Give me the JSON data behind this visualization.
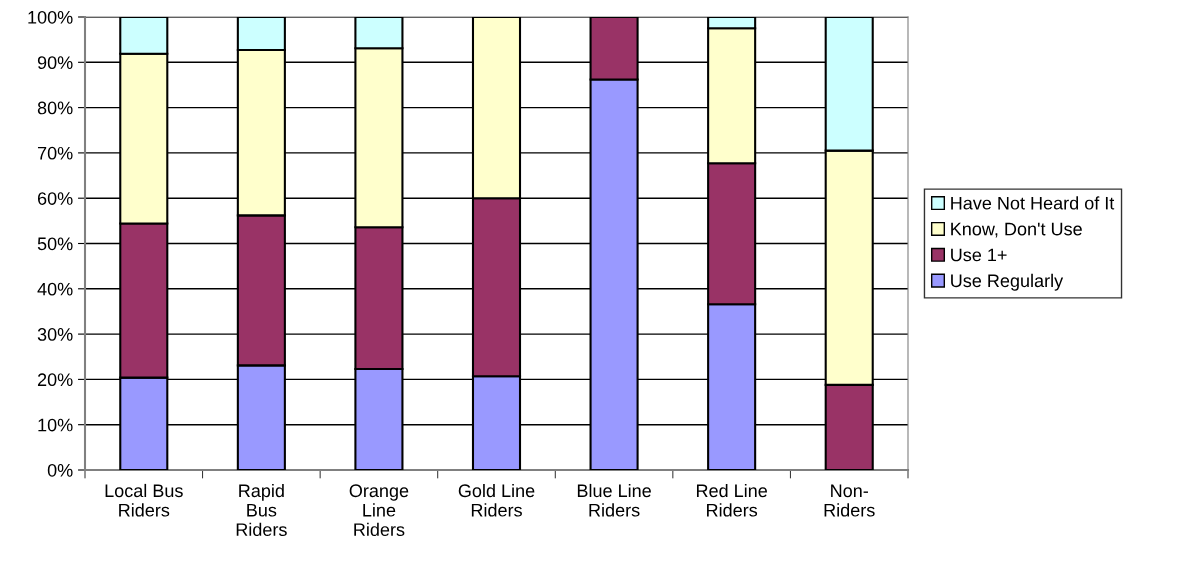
{
  "chart_data": {
    "type": "bar",
    "stacked": true,
    "categories": [
      "Local Bus\nRiders",
      "Rapid\nBus\nRiders",
      "Orange\nLine\nRiders",
      "Gold Line\nRiders",
      "Blue Line\nRiders",
      "Red Line\nRiders",
      "Non-\nRiders"
    ],
    "series": [
      {
        "name": "Use Regularly",
        "color": "#9999ff",
        "values": [
          20.4,
          23.1,
          22.3,
          20.7,
          86.2,
          36.6,
          0
        ]
      },
      {
        "name": "Use 1+",
        "color": "#993366",
        "values": [
          34.0,
          33.1,
          31.3,
          39.3,
          13.8,
          31.1,
          18.8
        ]
      },
      {
        "name": "Know, Don't Use",
        "color": "#ffffcc",
        "values": [
          37.5,
          36.5,
          39.5,
          40.0,
          0,
          29.8,
          51.7
        ]
      },
      {
        "name": "Have Not Heard of It",
        "color": "#ccffff",
        "values": [
          8.1,
          7.3,
          6.9,
          0,
          0,
          2.5,
          29.5
        ]
      }
    ],
    "ylim": [
      0,
      100
    ],
    "yticks": [
      {
        "value": 0,
        "label": "0%"
      },
      {
        "value": 10,
        "label": "10%"
      },
      {
        "value": 20,
        "label": "20%"
      },
      {
        "value": 30,
        "label": "30%"
      },
      {
        "value": 40,
        "label": "40%"
      },
      {
        "value": 50,
        "label": "50%"
      },
      {
        "value": 60,
        "label": "60%"
      },
      {
        "value": 70,
        "label": "70%"
      },
      {
        "value": 80,
        "label": "80%"
      },
      {
        "value": 90,
        "label": "90%"
      },
      {
        "value": 100,
        "label": "100%"
      }
    ],
    "grid": "y",
    "legend": "right"
  }
}
